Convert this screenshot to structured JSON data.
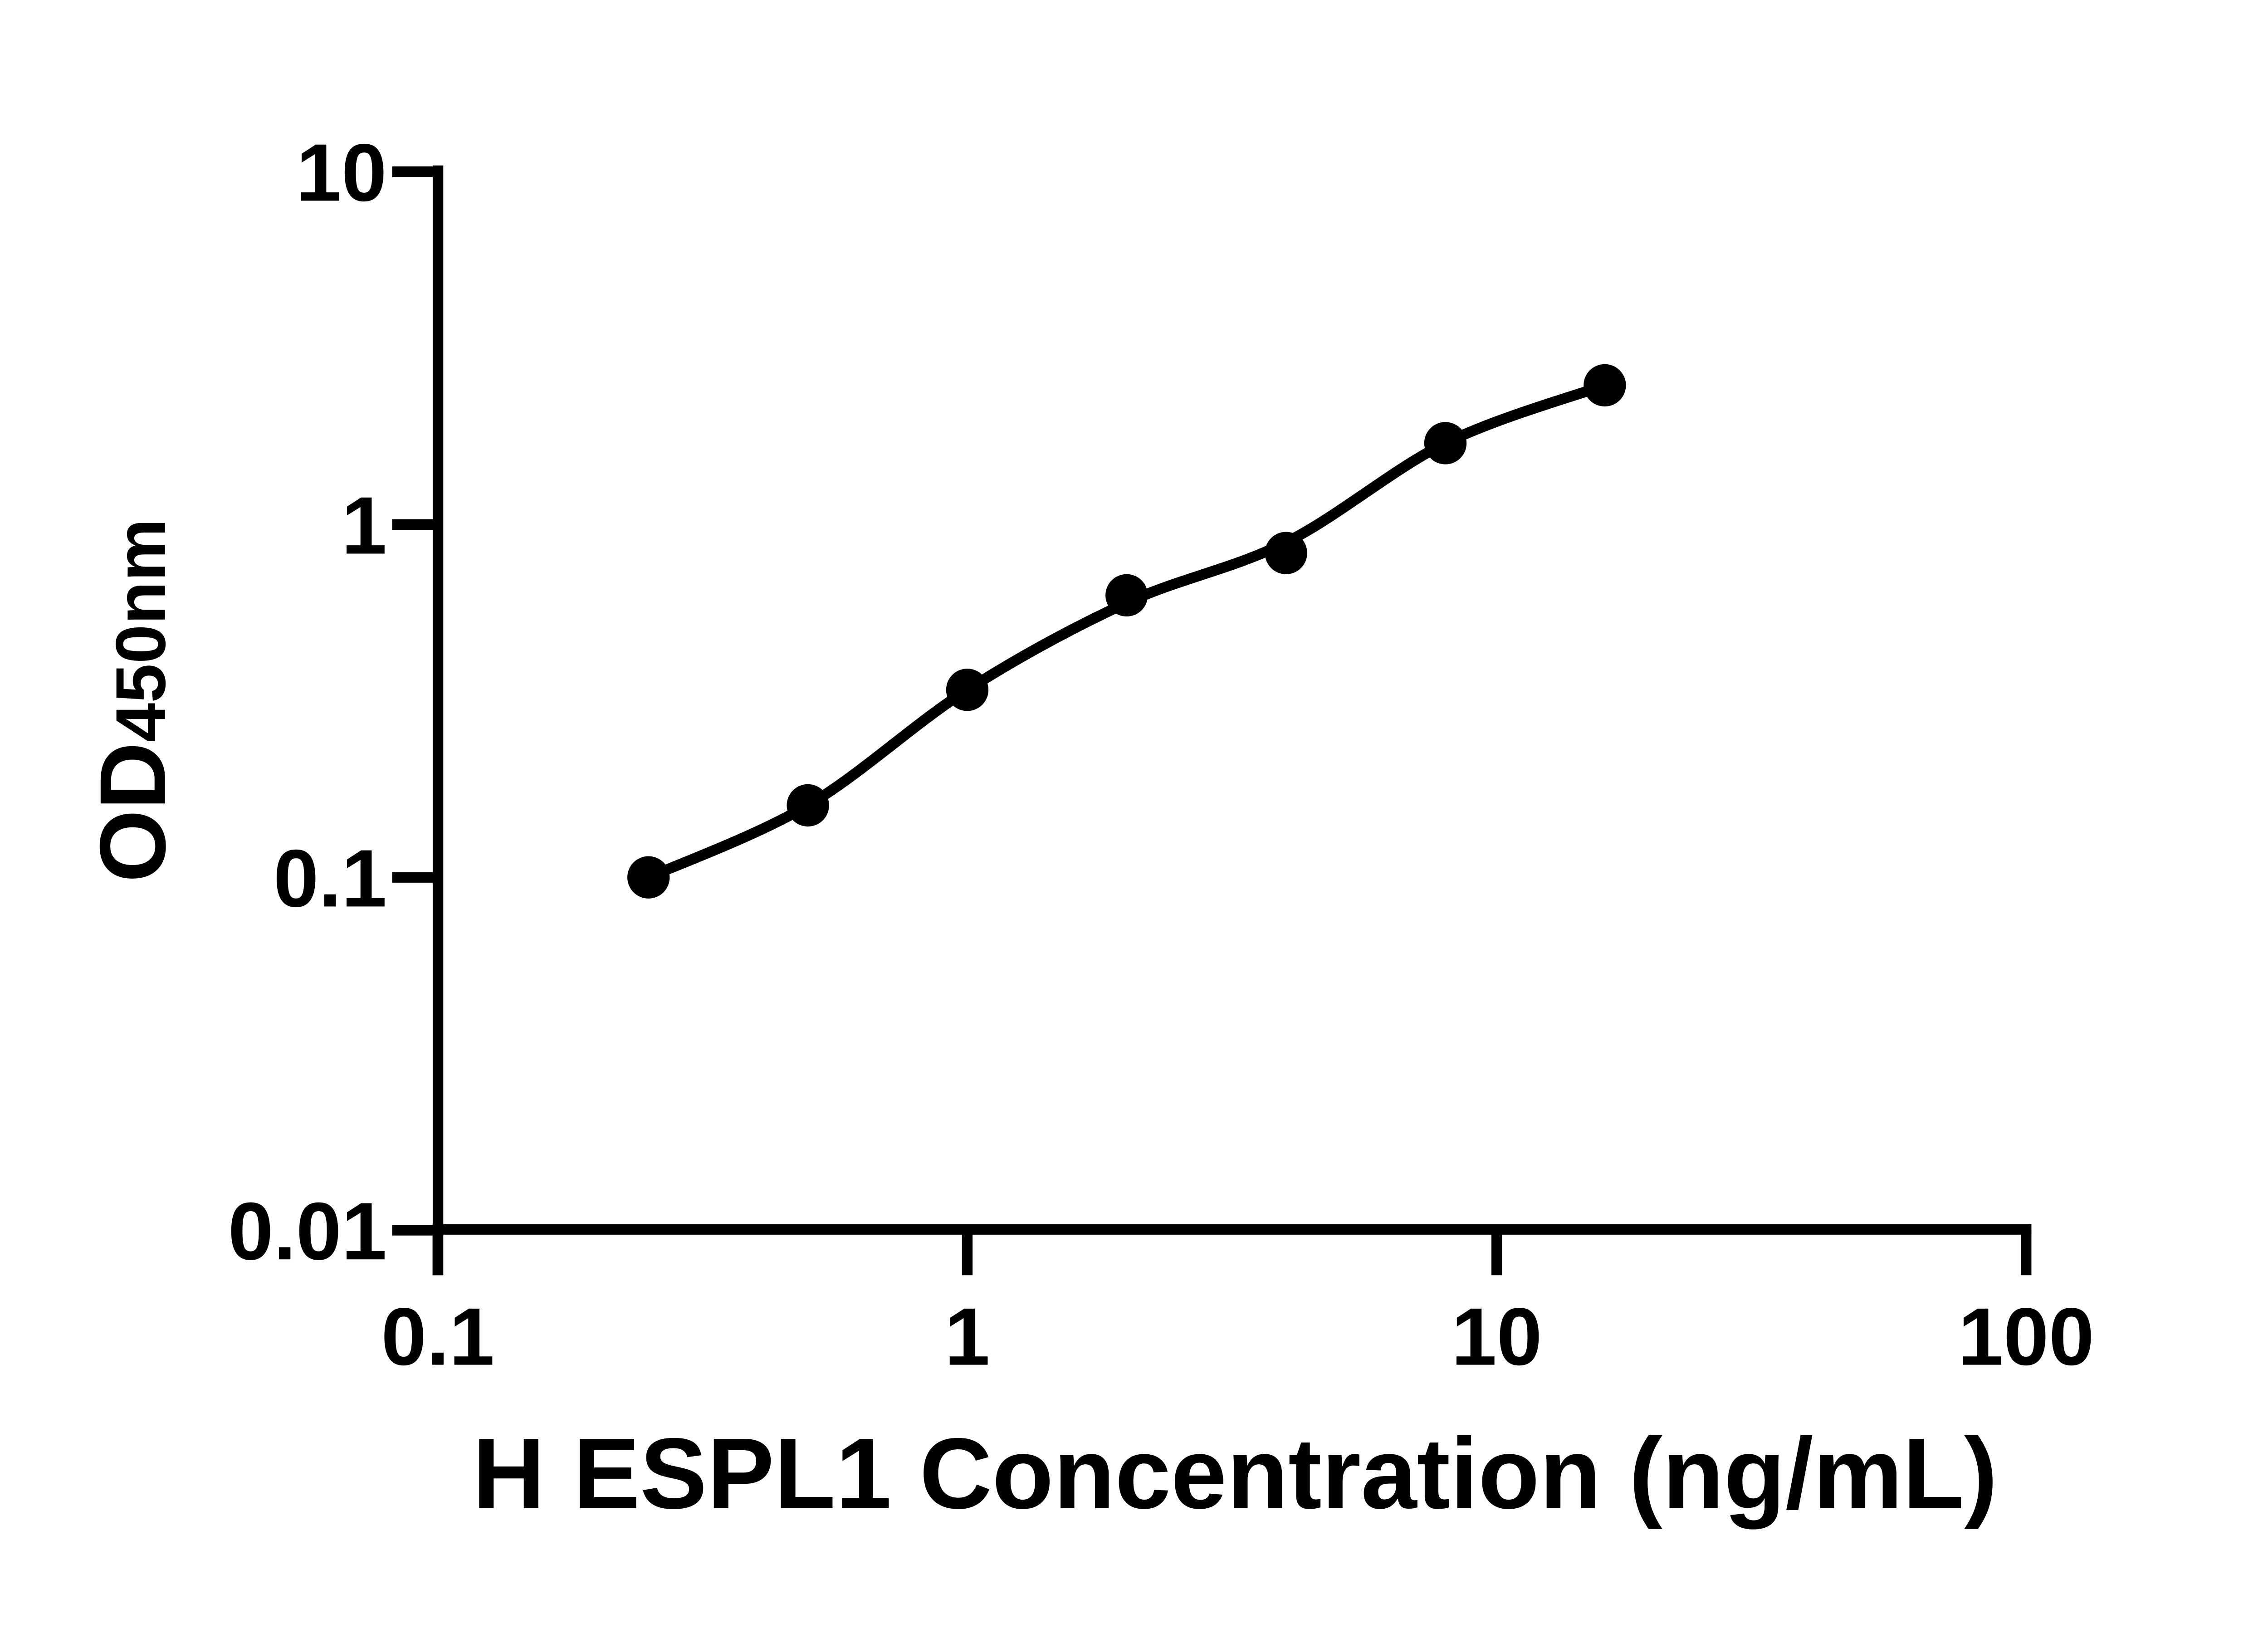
{
  "chart_data": {
    "type": "scatter",
    "title": "",
    "xlabel": "H ESPL1 Concentration (ng/mL)",
    "ylabel_main": "OD",
    "ylabel_sub": "450nm",
    "x_scale": "log",
    "y_scale": "log",
    "xlim": [
      0.1,
      100
    ],
    "ylim": [
      0.01,
      10
    ],
    "x_ticks": {
      "values": [
        0.1,
        1,
        10,
        100
      ],
      "labels": [
        "0.1",
        "1",
        "10",
        "100"
      ]
    },
    "y_ticks": {
      "values": [
        10,
        1,
        0.1,
        0.01
      ],
      "labels": [
        "10",
        "1",
        "0.1",
        "0.01"
      ]
    },
    "grid": false,
    "legend": null,
    "ink_color": "#000000",
    "background_color": "#ffffff",
    "series": [
      {
        "name": "standard-points",
        "type": "scatter",
        "x": [
          0.25,
          0.5,
          1,
          2,
          4,
          8,
          16
        ],
        "y": [
          0.1,
          0.16,
          0.34,
          0.63,
          0.83,
          1.7,
          2.48
        ]
      },
      {
        "name": "fit-curve",
        "type": "line",
        "x": [
          0.25,
          0.5,
          1,
          2,
          4,
          8,
          16
        ],
        "y": [
          0.1,
          0.16,
          0.34,
          0.6,
          0.89,
          1.7,
          2.48
        ]
      }
    ]
  }
}
